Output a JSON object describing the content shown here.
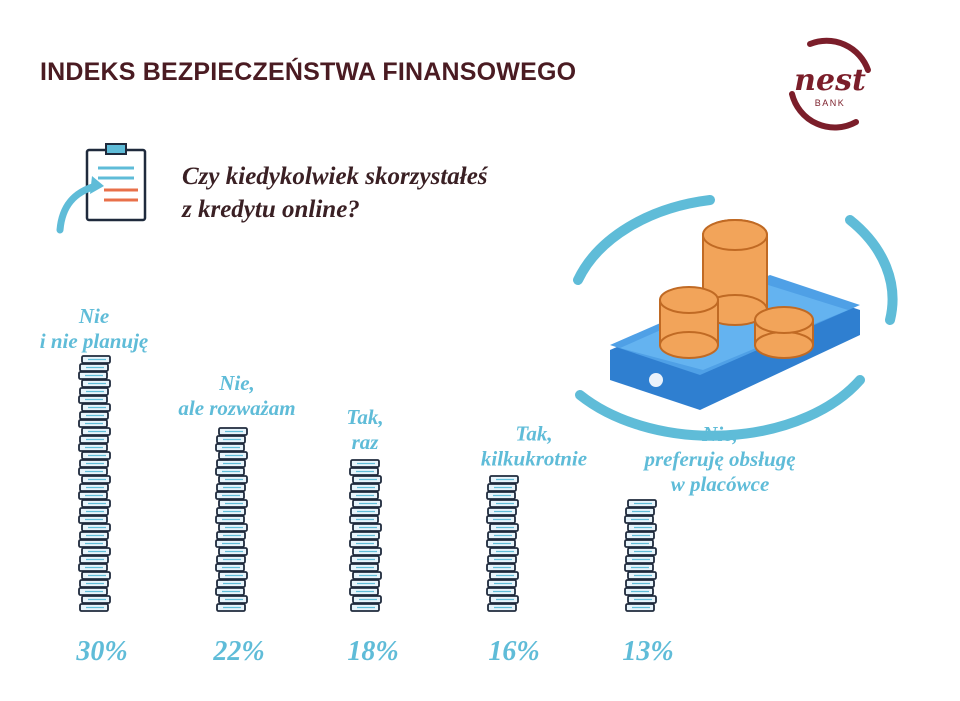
{
  "header": {
    "title": "INDEKS BEZPIECZEŃSTWA FINANSOWEGO",
    "question_line1": "Czy kiedykolwiek skorzystałeś",
    "question_line2": "z kredytu online?"
  },
  "logo": {
    "text": "nest",
    "subtext": "BANK",
    "color": "#7b1e2a"
  },
  "colors": {
    "accent": "#5fbcd8",
    "title": "#4a1b22",
    "coin_outline": "#1f2a3c",
    "coin_fill": "#e7f4fb"
  },
  "chart_data": {
    "type": "bar",
    "categories": [
      [
        "Nie",
        "i nie planuję"
      ],
      [
        "Nie,",
        "ale rozważam"
      ],
      [
        "Tak,",
        "raz"
      ],
      [
        "Tak,",
        "kilkukrotnie"
      ],
      [
        "Nie,",
        "preferuję obsługę",
        "w placówce"
      ]
    ],
    "values": [
      30,
      22,
      18,
      16,
      13
    ],
    "value_labels": [
      "30%",
      "22%",
      "18%",
      "16%",
      "13%"
    ]
  }
}
